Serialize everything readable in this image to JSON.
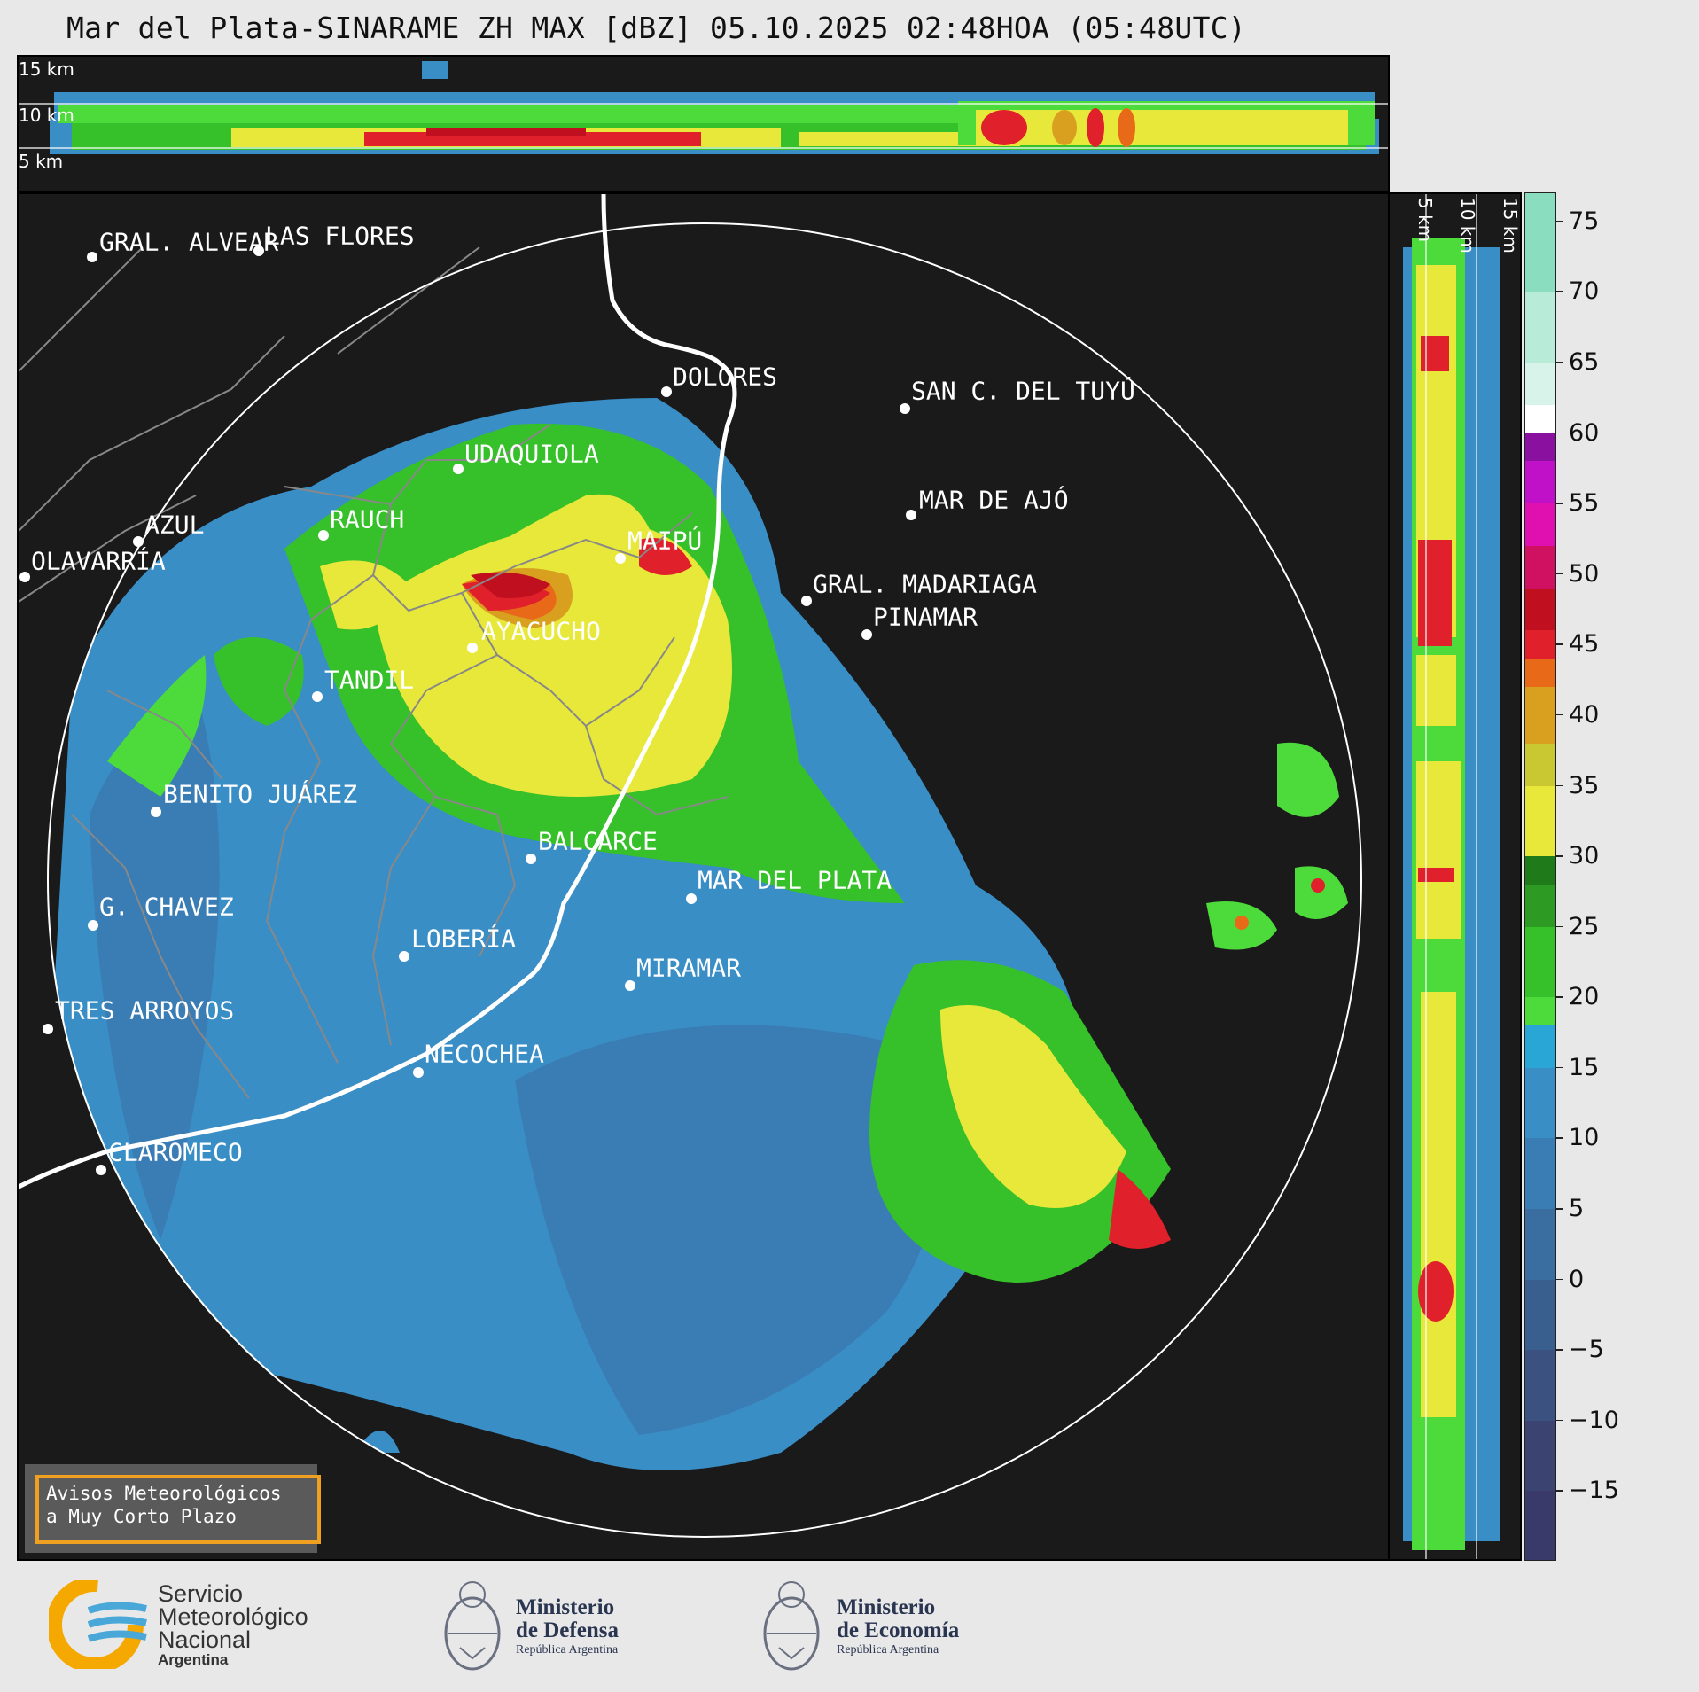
{
  "title": "Mar del Plata-SINARAME ZH MAX [dBZ] 05.10.2025 02:48HOA (05:48UTC)",
  "top_panel": {
    "altitude_labels": [
      "15 km",
      "10 km",
      "5 km"
    ]
  },
  "side_panel": {
    "altitude_labels": [
      "5 km",
      "10 km",
      "15 km"
    ]
  },
  "colorbar": {
    "unit": "dBZ",
    "min": -20,
    "max": 77,
    "ticks": [
      "75",
      "70",
      "65",
      "60",
      "55",
      "50",
      "45",
      "40",
      "35",
      "30",
      "25",
      "20",
      "15",
      "10",
      "5",
      "0",
      "−5",
      "−10",
      "−15"
    ],
    "tick_values": [
      75,
      70,
      65,
      60,
      55,
      50,
      45,
      40,
      35,
      30,
      25,
      20,
      15,
      10,
      5,
      0,
      -5,
      -10,
      -15
    ],
    "bands": [
      {
        "from": -20,
        "to": -15,
        "color": "#3a3a6a"
      },
      {
        "from": -15,
        "to": -10,
        "color": "#3b4470"
      },
      {
        "from": -10,
        "to": -5,
        "color": "#3b5280"
      },
      {
        "from": -5,
        "to": 0,
        "color": "#395f8f"
      },
      {
        "from": 0,
        "to": 5,
        "color": "#3a6ea0"
      },
      {
        "from": 5,
        "to": 10,
        "color": "#3a7db4"
      },
      {
        "from": 10,
        "to": 15,
        "color": "#3a8ec6"
      },
      {
        "from": 15,
        "to": 18,
        "color": "#2aa6d6"
      },
      {
        "from": 18,
        "to": 20,
        "color": "#4cdb3a"
      },
      {
        "from": 20,
        "to": 25,
        "color": "#36c02a"
      },
      {
        "from": 25,
        "to": 28,
        "color": "#2d9a24"
      },
      {
        "from": 28,
        "to": 30,
        "color": "#1f7a1a"
      },
      {
        "from": 30,
        "to": 35,
        "color": "#e8e83a"
      },
      {
        "from": 35,
        "to": 38,
        "color": "#c9c832"
      },
      {
        "from": 38,
        "to": 42,
        "color": "#d9a020"
      },
      {
        "from": 42,
        "to": 44,
        "color": "#e86a18"
      },
      {
        "from": 44,
        "to": 46,
        "color": "#e0202a"
      },
      {
        "from": 46,
        "to": 49,
        "color": "#c01020"
      },
      {
        "from": 49,
        "to": 52,
        "color": "#d01060"
      },
      {
        "from": 52,
        "to": 55,
        "color": "#e010b0"
      },
      {
        "from": 55,
        "to": 58,
        "color": "#c010c8"
      },
      {
        "from": 58,
        "to": 60,
        "color": "#8a10a0"
      },
      {
        "from": 60,
        "to": 62,
        "color": "#ffffff"
      },
      {
        "from": 62,
        "to": 65,
        "color": "#d8f4ea"
      },
      {
        "from": 65,
        "to": 70,
        "color": "#b8ecd8"
      },
      {
        "from": 70,
        "to": 77,
        "color": "#8addbf"
      }
    ]
  },
  "cities": [
    {
      "name": "GRAL. ALVEAR"
    },
    {
      "name": "LAS FLORES"
    },
    {
      "name": "DOLORES"
    },
    {
      "name": "SAN C. DEL TUYÚ"
    },
    {
      "name": "UDAQUIOLA"
    },
    {
      "name": "MAR DE AJÓ"
    },
    {
      "name": "AZUL"
    },
    {
      "name": "RAUCH"
    },
    {
      "name": "MAIPÚ"
    },
    {
      "name": "OLAVARRÍA"
    },
    {
      "name": "GRAL. MADARIAGA"
    },
    {
      "name": "PINAMAR"
    },
    {
      "name": "AYACUCHO"
    },
    {
      "name": "TANDIL"
    },
    {
      "name": "BENITO JUÁREZ"
    },
    {
      "name": "BALCARCE"
    },
    {
      "name": "MAR DEL PLATA"
    },
    {
      "name": "G. CHAVEZ"
    },
    {
      "name": "LOBERÍA"
    },
    {
      "name": "MIRAMAR"
    },
    {
      "name": "TRES ARROYOS"
    },
    {
      "name": "NECOCHEA"
    },
    {
      "name": "CLAROMECO"
    }
  ],
  "notice": {
    "line1": "Avisos Meteorológicos",
    "line2": "a Muy Corto Plazo",
    "border_color": "#f0a020"
  },
  "footer": {
    "smn": {
      "line1": "Servicio",
      "line2": "Meteorológico",
      "line3": "Nacional",
      "line4": "Argentina"
    },
    "defensa": {
      "line1": "Ministerio",
      "line2": "de Defensa",
      "line3": "República Argentina"
    },
    "economia": {
      "line1": "Ministerio",
      "line2": "de Economía",
      "line3": "República Argentina"
    }
  }
}
